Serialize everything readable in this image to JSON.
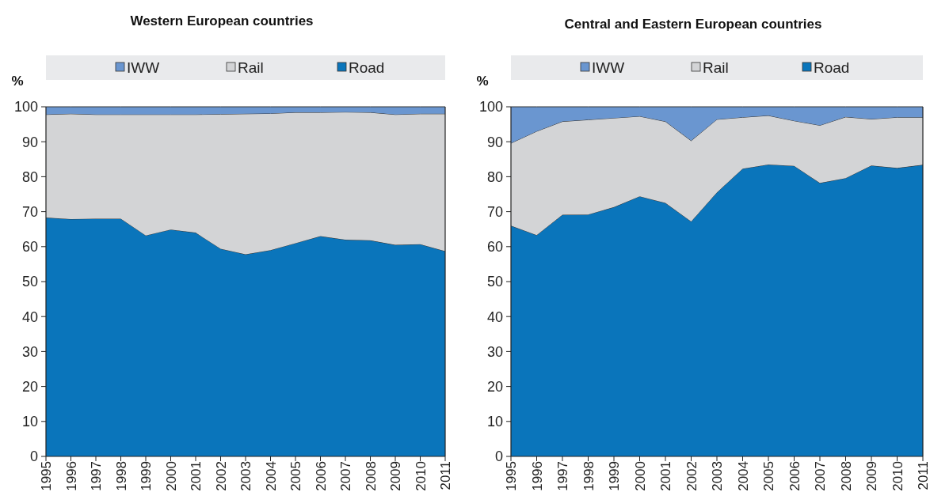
{
  "chart_data": [
    {
      "type": "area",
      "title": "Western European countries",
      "ylabel": "%",
      "stacked": true,
      "legend": "top",
      "grid": false,
      "categories": [
        "1995",
        "1996",
        "1997",
        "1998",
        "1999",
        "2000",
        "2001",
        "2002",
        "2003",
        "2004",
        "2005",
        "2006",
        "2007",
        "2008",
        "2009",
        "2010",
        "2011"
      ],
      "ylim": [
        0,
        100
      ],
      "yticks": [
        0,
        10,
        20,
        30,
        40,
        50,
        60,
        70,
        80,
        90,
        100
      ],
      "series": [
        {
          "name": "Road",
          "color": "#0a75bb",
          "values": [
            68.3,
            67.9,
            68.0,
            68.0,
            63.2,
            64.9,
            64.0,
            59.4,
            57.8,
            59.0,
            61.0,
            63.0,
            62.0,
            61.8,
            60.5,
            60.7,
            58.7
          ]
        },
        {
          "name": "Rail",
          "color": "#d3d4d6",
          "values": [
            29.5,
            30.1,
            29.8,
            29.8,
            34.6,
            32.9,
            33.8,
            38.5,
            40.2,
            39.1,
            37.4,
            35.4,
            36.5,
            36.6,
            37.3,
            37.3,
            39.3
          ]
        },
        {
          "name": "IWW",
          "color": "#6a96d0",
          "values": [
            2.2,
            2.0,
            2.2,
            2.2,
            2.2,
            2.2,
            2.2,
            2.1,
            2.0,
            1.9,
            1.6,
            1.6,
            1.5,
            1.6,
            2.2,
            2.0,
            2.0
          ]
        }
      ]
    },
    {
      "type": "area",
      "title": "Central and Eastern European countries",
      "ylabel": "%",
      "stacked": true,
      "legend": "top",
      "grid": false,
      "categories": [
        "1995",
        "1996",
        "1997",
        "1998",
        "1999",
        "2000",
        "2001",
        "2002",
        "2003",
        "2004",
        "2005",
        "2006",
        "2007",
        "2008",
        "2009",
        "2010",
        "2011"
      ],
      "ylim": [
        0,
        100
      ],
      "yticks": [
        0,
        10,
        20,
        30,
        40,
        50,
        60,
        70,
        80,
        90,
        100
      ],
      "series": [
        {
          "name": "Road",
          "color": "#0a75bb",
          "values": [
            66.0,
            63.3,
            69.1,
            69.2,
            71.3,
            74.4,
            72.5,
            67.2,
            75.5,
            82.3,
            83.5,
            83.1,
            78.2,
            79.6,
            83.2,
            82.5,
            83.4
          ]
        },
        {
          "name": "Rail",
          "color": "#d3d4d6",
          "values": [
            23.6,
            29.7,
            26.7,
            27.1,
            25.5,
            22.9,
            23.3,
            23.1,
            20.9,
            14.7,
            14.0,
            12.9,
            16.5,
            17.5,
            13.3,
            14.5,
            13.6
          ]
        },
        {
          "name": "IWW",
          "color": "#6a96d0",
          "values": [
            10.4,
            7.0,
            4.2,
            3.7,
            3.2,
            2.7,
            4.2,
            9.7,
            3.6,
            3.0,
            2.5,
            4.0,
            5.3,
            2.9,
            3.5,
            3.0,
            3.0
          ]
        }
      ]
    }
  ]
}
